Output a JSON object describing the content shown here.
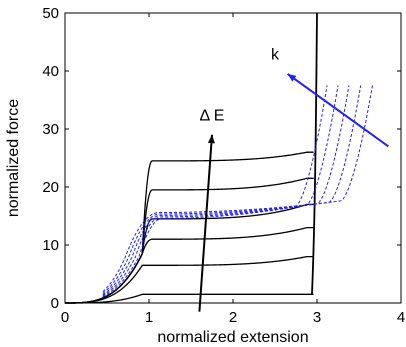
{
  "chart_data": {
    "type": "line",
    "xlabel": "normalized extension",
    "ylabel": "normalized force",
    "xlim": [
      0,
      4
    ],
    "ylim": [
      0,
      50
    ],
    "xticks": [
      "0",
      "1",
      "2",
      "3",
      "4"
    ],
    "yticks": [
      "0",
      "10",
      "20",
      "30",
      "40",
      "50"
    ],
    "grid": false,
    "box": true,
    "colors": {
      "energy_curves": "#000000",
      "k_curves": "#1f1fff",
      "k_arrow": "#1f1fff",
      "dE_arrow": "#000000"
    },
    "energy_curves": [
      {
        "plateau": 1.5,
        "end": [
          3.0,
          1.5
        ]
      },
      {
        "plateau": 6.5,
        "end": [
          3.0,
          8.0
        ]
      },
      {
        "plateau": 11.0,
        "end": [
          3.0,
          13.0
        ]
      },
      {
        "plateau": 14.5,
        "end": [
          3.0,
          17.0
        ]
      },
      {
        "plateau": 19.5,
        "end": [
          3.0,
          21.5
        ]
      },
      {
        "plateau": 24.5,
        "end": [
          3.0,
          26.0
        ]
      }
    ],
    "k_curves": [
      {
        "onset": 0.88,
        "end": [
          3.12,
          37.5
        ]
      },
      {
        "onset": 0.84,
        "end": [
          3.25,
          37.5
        ]
      },
      {
        "onset": 0.8,
        "end": [
          3.38,
          37.5
        ]
      },
      {
        "onset": 0.76,
        "end": [
          3.52,
          37.5
        ]
      },
      {
        "onset": 0.72,
        "end": [
          3.66,
          37.5
        ]
      }
    ],
    "annotations": [
      {
        "text": "Δ E",
        "x": 1.75,
        "y": 31.5
      },
      {
        "text": "k",
        "x": 2.5,
        "y": 42.0
      }
    ],
    "arrows": [
      {
        "name": "delta-e-arrow",
        "from": [
          1.6,
          -1.5
        ],
        "to": [
          1.75,
          29.0
        ]
      },
      {
        "name": "k-arrow",
        "from": [
          3.85,
          27.0
        ],
        "to": [
          2.65,
          39.5
        ]
      }
    ]
  }
}
